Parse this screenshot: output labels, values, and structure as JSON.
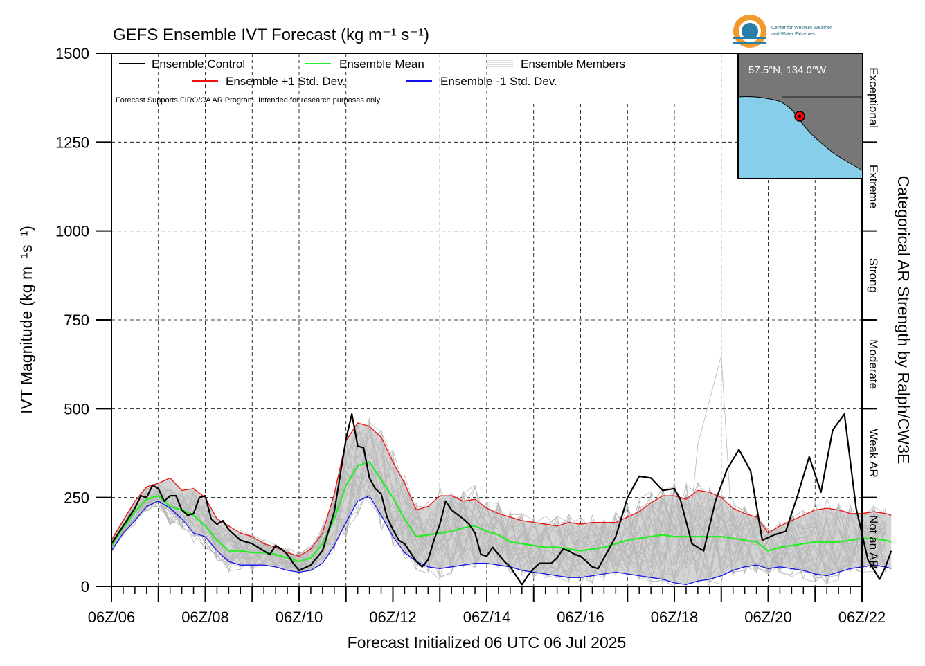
{
  "title": "GEFS Ensemble IVT Forecast (kg m⁻¹ s⁻¹)",
  "xlabel": "Forecast Initialized 06 UTC 06 Jul 2025",
  "ylabel": "IVT Magnitude (kg m⁻¹s⁻¹)",
  "right_label": "Categorical AR Strength by Ralph/CW3E",
  "note": "Forecast Supports FIRO/CA AR Program. Intended for research purposes only",
  "location_label": "57.5°N, 134.0°W",
  "logo": {
    "line1": "Center for Western Weather",
    "line2": "and Water Extremes"
  },
  "legend": {
    "control": "Ensemble Control",
    "mean": "Ensemble Mean",
    "members": "Ensemble Members",
    "plus": "Ensemble +1 Std. Dev.",
    "minus": "Ensemble -1 Std. Dev."
  },
  "colors": {
    "control": "#000000",
    "mean": "#22ee22",
    "plus": "#ee1111",
    "minus": "#1111ee",
    "members": "#b8b8b8",
    "spread": "#d4d4d4",
    "inset_ocean": "#87ceeb",
    "inset_land": "#777777"
  },
  "chart_data": {
    "type": "line",
    "x_unit": "days since 06Z 06 Jul 2025",
    "xlim": [
      0,
      16
    ],
    "ylim": [
      0,
      1500
    ],
    "x_ticks": [
      "06Z/06",
      "06Z/08",
      "06Z/10",
      "06Z/12",
      "06Z/14",
      "06Z/16",
      "06Z/18",
      "06Z/20",
      "06Z/22"
    ],
    "y_ticks": [
      "0",
      "250",
      "500",
      "750",
      "1000",
      "1250",
      "1500"
    ],
    "categories": [
      {
        "label": "Not an AR",
        "range": [
          0,
          250
        ]
      },
      {
        "label": "Weak AR",
        "range": [
          250,
          500
        ]
      },
      {
        "label": "Moderate",
        "range": [
          500,
          750
        ]
      },
      {
        "label": "Strong",
        "range": [
          750,
          1000
        ]
      },
      {
        "label": "Extreme",
        "range": [
          1000,
          1250
        ]
      },
      {
        "label": "Exceptional",
        "range": [
          1250,
          1500
        ]
      }
    ],
    "series": [
      {
        "name": "Ensemble Control",
        "color": "#000000",
        "points": [
          [
            0,
            120
          ],
          [
            0.25,
            170
          ],
          [
            0.5,
            220
          ],
          [
            0.625,
            255
          ],
          [
            0.75,
            250
          ],
          [
            0.875,
            285
          ],
          [
            1,
            275
          ],
          [
            1.125,
            240
          ],
          [
            1.25,
            255
          ],
          [
            1.375,
            255
          ],
          [
            1.5,
            215
          ],
          [
            1.625,
            200
          ],
          [
            1.75,
            205
          ],
          [
            1.875,
            250
          ],
          [
            2,
            255
          ],
          [
            2.125,
            190
          ],
          [
            2.25,
            175
          ],
          [
            2.375,
            185
          ],
          [
            2.5,
            160
          ],
          [
            2.75,
            130
          ],
          [
            3,
            120
          ],
          [
            3.25,
            100
          ],
          [
            3.375,
            90
          ],
          [
            3.5,
            115
          ],
          [
            3.625,
            105
          ],
          [
            3.75,
            90
          ],
          [
            3.875,
            65
          ],
          [
            4,
            45
          ],
          [
            4.25,
            60
          ],
          [
            4.5,
            100
          ],
          [
            4.75,
            210
          ],
          [
            5,
            415
          ],
          [
            5.125,
            485
          ],
          [
            5.25,
            395
          ],
          [
            5.375,
            390
          ],
          [
            5.5,
            305
          ],
          [
            5.625,
            275
          ],
          [
            5.75,
            260
          ],
          [
            5.875,
            195
          ],
          [
            6,
            160
          ],
          [
            6.125,
            130
          ],
          [
            6.25,
            120
          ],
          [
            6.5,
            70
          ],
          [
            6.625,
            55
          ],
          [
            6.75,
            75
          ],
          [
            6.875,
            130
          ],
          [
            7,
            175
          ],
          [
            7.125,
            240
          ],
          [
            7.25,
            215
          ],
          [
            7.5,
            190
          ],
          [
            7.625,
            175
          ],
          [
            7.75,
            150
          ],
          [
            7.875,
            90
          ],
          [
            8,
            85
          ],
          [
            8.125,
            110
          ],
          [
            8.375,
            70
          ],
          [
            8.5,
            55
          ],
          [
            8.75,
            5
          ],
          [
            8.875,
            30
          ],
          [
            9,
            50
          ],
          [
            9.125,
            65
          ],
          [
            9.375,
            65
          ],
          [
            9.5,
            80
          ],
          [
            9.625,
            105
          ],
          [
            9.75,
            100
          ],
          [
            9.875,
            90
          ],
          [
            10,
            85
          ],
          [
            10.25,
            55
          ],
          [
            10.375,
            50
          ],
          [
            10.5,
            80
          ],
          [
            10.75,
            140
          ],
          [
            11,
            250
          ],
          [
            11.25,
            310
          ],
          [
            11.5,
            305
          ],
          [
            11.75,
            270
          ],
          [
            12,
            275
          ],
          [
            12.125,
            245
          ],
          [
            12.375,
            120
          ],
          [
            12.625,
            100
          ],
          [
            12.875,
            240
          ],
          [
            13.125,
            330
          ],
          [
            13.375,
            385
          ],
          [
            13.625,
            325
          ],
          [
            13.875,
            130
          ],
          [
            14.125,
            145
          ],
          [
            14.375,
            155
          ],
          [
            14.625,
            255
          ],
          [
            14.875,
            365
          ],
          [
            15.125,
            265
          ],
          [
            15.375,
            440
          ],
          [
            15.625,
            485
          ],
          [
            15.875,
            220
          ],
          [
            16.125,
            75
          ],
          [
            16.375,
            20
          ],
          [
            16.5,
            55
          ],
          [
            16.625,
            100
          ]
        ]
      },
      {
        "name": "Ensemble Mean",
        "color": "#22ee22",
        "points": [
          [
            0,
            115
          ],
          [
            0.25,
            165
          ],
          [
            0.5,
            210
          ],
          [
            0.75,
            245
          ],
          [
            1,
            255
          ],
          [
            1.25,
            225
          ],
          [
            1.5,
            215
          ],
          [
            1.75,
            200
          ],
          [
            2,
            170
          ],
          [
            2.25,
            130
          ],
          [
            2.5,
            100
          ],
          [
            2.75,
            100
          ],
          [
            3,
            95
          ],
          [
            3.25,
            95
          ],
          [
            3.5,
            90
          ],
          [
            3.75,
            80
          ],
          [
            4,
            70
          ],
          [
            4.25,
            80
          ],
          [
            4.5,
            120
          ],
          [
            4.75,
            190
          ],
          [
            5,
            285
          ],
          [
            5.25,
            340
          ],
          [
            5.5,
            350
          ],
          [
            5.75,
            300
          ],
          [
            6,
            250
          ],
          [
            6.25,
            190
          ],
          [
            6.5,
            140
          ],
          [
            6.75,
            145
          ],
          [
            7,
            150
          ],
          [
            7.25,
            155
          ],
          [
            7.5,
            165
          ],
          [
            7.75,
            170
          ],
          [
            8,
            155
          ],
          [
            8.25,
            145
          ],
          [
            8.5,
            125
          ],
          [
            8.75,
            120
          ],
          [
            9,
            115
          ],
          [
            9.25,
            110
          ],
          [
            9.5,
            110
          ],
          [
            9.75,
            105
          ],
          [
            10,
            100
          ],
          [
            10.25,
            105
          ],
          [
            10.5,
            110
          ],
          [
            10.75,
            120
          ],
          [
            11,
            130
          ],
          [
            11.25,
            135
          ],
          [
            11.5,
            140
          ],
          [
            11.75,
            145
          ],
          [
            12,
            140
          ],
          [
            12.25,
            140
          ],
          [
            12.5,
            140
          ],
          [
            12.75,
            140
          ],
          [
            13,
            140
          ],
          [
            13.25,
            135
          ],
          [
            13.5,
            130
          ],
          [
            13.75,
            125
          ],
          [
            14,
            100
          ],
          [
            14.25,
            110
          ],
          [
            14.5,
            115
          ],
          [
            14.75,
            120
          ],
          [
            15,
            125
          ],
          [
            15.25,
            125
          ],
          [
            15.5,
            125
          ],
          [
            15.75,
            130
          ],
          [
            16,
            135
          ],
          [
            16.25,
            135
          ],
          [
            16.5,
            130
          ],
          [
            16.625,
            125
          ]
        ]
      },
      {
        "name": "Ensemble +1 Std. Dev.",
        "color": "#ee1111",
        "points": [
          [
            0,
            130
          ],
          [
            0.25,
            185
          ],
          [
            0.5,
            240
          ],
          [
            0.75,
            280
          ],
          [
            1,
            290
          ],
          [
            1.25,
            305
          ],
          [
            1.5,
            270
          ],
          [
            1.75,
            275
          ],
          [
            2,
            250
          ],
          [
            2.25,
            190
          ],
          [
            2.5,
            170
          ],
          [
            2.75,
            150
          ],
          [
            3,
            140
          ],
          [
            3.25,
            120
          ],
          [
            3.5,
            110
          ],
          [
            3.75,
            95
          ],
          [
            4,
            85
          ],
          [
            4.25,
            105
          ],
          [
            4.5,
            150
          ],
          [
            4.75,
            260
          ],
          [
            5,
            410
          ],
          [
            5.25,
            460
          ],
          [
            5.5,
            450
          ],
          [
            5.75,
            420
          ],
          [
            6,
            350
          ],
          [
            6.25,
            290
          ],
          [
            6.5,
            215
          ],
          [
            6.75,
            225
          ],
          [
            7,
            255
          ],
          [
            7.25,
            255
          ],
          [
            7.5,
            240
          ],
          [
            7.75,
            245
          ],
          [
            8,
            220
          ],
          [
            8.25,
            205
          ],
          [
            8.5,
            195
          ],
          [
            8.75,
            185
          ],
          [
            9,
            180
          ],
          [
            9.25,
            175
          ],
          [
            9.5,
            170
          ],
          [
            9.75,
            180
          ],
          [
            10,
            175
          ],
          [
            10.25,
            180
          ],
          [
            10.5,
            180
          ],
          [
            10.75,
            180
          ],
          [
            11,
            195
          ],
          [
            11.25,
            210
          ],
          [
            11.5,
            235
          ],
          [
            11.75,
            255
          ],
          [
            12,
            255
          ],
          [
            12.25,
            245
          ],
          [
            12.5,
            270
          ],
          [
            12.75,
            265
          ],
          [
            13,
            250
          ],
          [
            13.25,
            220
          ],
          [
            13.5,
            205
          ],
          [
            13.75,
            195
          ],
          [
            14,
            150
          ],
          [
            14.25,
            170
          ],
          [
            14.5,
            185
          ],
          [
            14.75,
            200
          ],
          [
            15,
            215
          ],
          [
            15.25,
            220
          ],
          [
            15.5,
            215
          ],
          [
            15.75,
            205
          ],
          [
            16,
            205
          ],
          [
            16.25,
            210
          ],
          [
            16.5,
            205
          ],
          [
            16.625,
            200
          ]
        ]
      },
      {
        "name": "Ensemble -1 Std. Dev.",
        "color": "#1111ee",
        "points": [
          [
            0,
            100
          ],
          [
            0.25,
            150
          ],
          [
            0.5,
            185
          ],
          [
            0.75,
            225
          ],
          [
            1,
            240
          ],
          [
            1.25,
            220
          ],
          [
            1.5,
            190
          ],
          [
            1.75,
            150
          ],
          [
            2,
            140
          ],
          [
            2.25,
            100
          ],
          [
            2.5,
            70
          ],
          [
            2.75,
            60
          ],
          [
            3,
            60
          ],
          [
            3.25,
            60
          ],
          [
            3.5,
            55
          ],
          [
            3.75,
            45
          ],
          [
            4,
            40
          ],
          [
            4.25,
            45
          ],
          [
            4.5,
            65
          ],
          [
            4.75,
            115
          ],
          [
            5,
            180
          ],
          [
            5.25,
            240
          ],
          [
            5.5,
            255
          ],
          [
            5.75,
            200
          ],
          [
            6,
            140
          ],
          [
            6.25,
            95
          ],
          [
            6.5,
            70
          ],
          [
            6.75,
            55
          ],
          [
            7,
            50
          ],
          [
            7.25,
            55
          ],
          [
            7.5,
            60
          ],
          [
            7.75,
            65
          ],
          [
            8,
            65
          ],
          [
            8.25,
            60
          ],
          [
            8.5,
            55
          ],
          [
            8.75,
            45
          ],
          [
            9,
            40
          ],
          [
            9.25,
            35
          ],
          [
            9.5,
            30
          ],
          [
            9.75,
            25
          ],
          [
            10,
            25
          ],
          [
            10.25,
            30
          ],
          [
            10.5,
            35
          ],
          [
            10.75,
            40
          ],
          [
            11,
            35
          ],
          [
            11.25,
            30
          ],
          [
            11.5,
            25
          ],
          [
            11.75,
            20
          ],
          [
            12,
            10
          ],
          [
            12.25,
            5
          ],
          [
            12.5,
            15
          ],
          [
            12.75,
            20
          ],
          [
            13,
            30
          ],
          [
            13.25,
            45
          ],
          [
            13.5,
            55
          ],
          [
            13.75,
            60
          ],
          [
            14,
            50
          ],
          [
            14.25,
            55
          ],
          [
            14.5,
            50
          ],
          [
            14.75,
            45
          ],
          [
            15,
            35
          ],
          [
            15.25,
            30
          ],
          [
            15.5,
            40
          ],
          [
            15.75,
            50
          ],
          [
            16,
            55
          ],
          [
            16.25,
            60
          ],
          [
            16.5,
            55
          ],
          [
            16.625,
            50
          ]
        ]
      }
    ]
  }
}
